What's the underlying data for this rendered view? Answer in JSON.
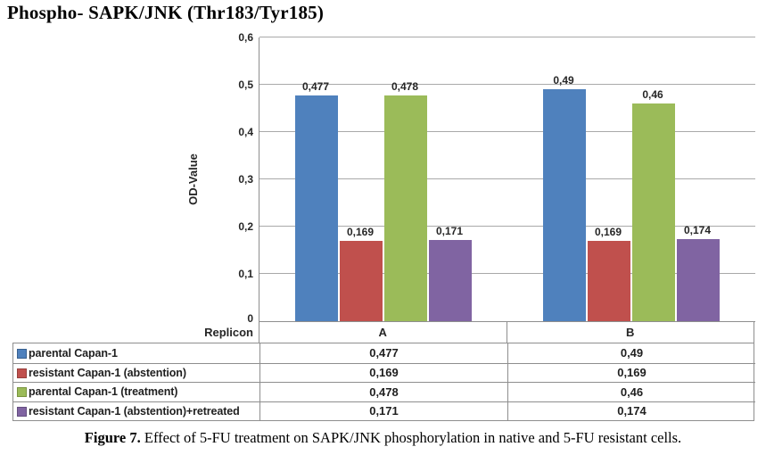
{
  "title": "Phospho- SAPK/JNK (Thr183/Tyr185)",
  "caption": {
    "prefix": "Figure 7.",
    "rest": " Effect of 5-FU treatment on SAPK/JNK phosphorylation in native and 5-FU resistant cells."
  },
  "chart_data": {
    "type": "bar",
    "title": "Phospho- SAPK/JNK (Thr183/Tyr185)",
    "ylabel": "OD-Value",
    "xlabel": "Replicon",
    "categories": [
      "A",
      "B"
    ],
    "series": [
      {
        "name": "parental Capan-1",
        "color": "#4f81bd",
        "border_color": "#38608f",
        "values": [
          0.477,
          0.49
        ],
        "labels": [
          "0,477",
          "0,49"
        ]
      },
      {
        "name": "resistant Capan-1 (abstention)",
        "color": "#c0504d",
        "border_color": "#96403d",
        "values": [
          0.169,
          0.169
        ],
        "labels": [
          "0,169",
          "0,169"
        ]
      },
      {
        "name": "parental Capan-1 (treatment)",
        "color": "#9bbb59",
        "border_color": "#7a9440",
        "values": [
          0.478,
          0.46
        ],
        "labels": [
          "0,478",
          "0,46"
        ]
      },
      {
        "name": "resistant Capan-1 (abstention)+retreated",
        "color": "#8064a2",
        "border_color": "#644e80",
        "values": [
          0.171,
          0.174
        ],
        "labels": [
          "0,171",
          "0,174"
        ]
      }
    ],
    "ylim": [
      0,
      0.6
    ],
    "ytick_step": 0.1,
    "ytick_labels": [
      "0",
      "0,1",
      "0,2",
      "0,3",
      "0,4",
      "0,5",
      "0,6"
    ],
    "grid": true,
    "legend_position": "data-table-below-chart"
  },
  "colors": {
    "gridline": "#a9a9a9",
    "axis_line": "#8e8e8e",
    "table_border": "#8e8e8e",
    "text": "#262626"
  }
}
